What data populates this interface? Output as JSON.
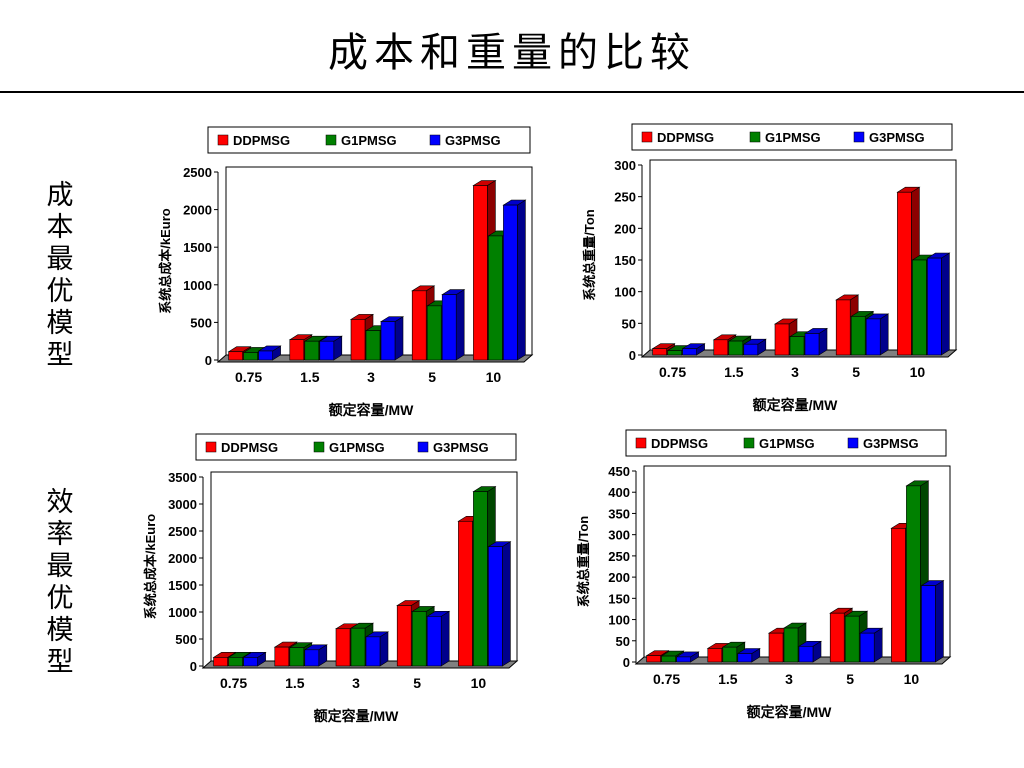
{
  "page": {
    "title": "成本和重量的比较",
    "row_labels": [
      "成本最优模型",
      "效率最优模型"
    ]
  },
  "series_colors": {
    "DDPMSG": "#ff0000",
    "G1PMSG": "#008000",
    "G3PMSG": "#0000ff"
  },
  "chart_data": [
    {
      "type": "bar",
      "title": "",
      "categories": [
        "0.75",
        "1.5",
        "3",
        "5",
        "10"
      ],
      "xlabel": "额定容量/MW",
      "ylabel": "系统总成本/kEuro",
      "ylim": [
        0,
        2500
      ],
      "yticks": [
        0,
        500,
        1000,
        1500,
        2000,
        2500
      ],
      "legend": "top",
      "grid": false,
      "series": [
        {
          "name": "DDPMSG",
          "values": [
            110,
            270,
            540,
            920,
            2320
          ]
        },
        {
          "name": "G1PMSG",
          "values": [
            100,
            250,
            390,
            720,
            1650
          ]
        },
        {
          "name": "G3PMSG",
          "values": [
            120,
            250,
            510,
            870,
            2060
          ]
        }
      ]
    },
    {
      "type": "bar",
      "title": "",
      "categories": [
        "0.75",
        "1.5",
        "3",
        "5",
        "10"
      ],
      "xlabel": "额定容量/MW",
      "ylabel": "系统总重量/Ton",
      "ylim": [
        0,
        300
      ],
      "yticks": [
        0,
        50,
        100,
        150,
        200,
        250,
        300
      ],
      "legend": "top",
      "grid": false,
      "series": [
        {
          "name": "DDPMSG",
          "values": [
            10,
            24,
            49,
            87,
            257
          ]
        },
        {
          "name": "G1PMSG",
          "values": [
            7,
            22,
            29,
            61,
            150
          ]
        },
        {
          "name": "G3PMSG",
          "values": [
            10,
            17,
            34,
            57,
            153
          ]
        }
      ]
    },
    {
      "type": "bar",
      "title": "",
      "categories": [
        "0.75",
        "1.5",
        "3",
        "5",
        "10"
      ],
      "xlabel": "额定容量/MW",
      "ylabel": "系统总成本/kEuro",
      "ylim": [
        0,
        3500
      ],
      "yticks": [
        0,
        500,
        1000,
        1500,
        2000,
        2500,
        3000,
        3500
      ],
      "legend": "top",
      "grid": false,
      "series": [
        {
          "name": "DDPMSG",
          "values": [
            160,
            350,
            690,
            1120,
            2680
          ]
        },
        {
          "name": "G1PMSG",
          "values": [
            160,
            340,
            700,
            1010,
            3230
          ]
        },
        {
          "name": "G3PMSG",
          "values": [
            160,
            300,
            540,
            920,
            2210
          ]
        }
      ]
    },
    {
      "type": "bar",
      "title": "",
      "categories": [
        "0.75",
        "1.5",
        "3",
        "5",
        "10"
      ],
      "xlabel": "额定容量/MW",
      "ylabel": "系统总重量/Ton",
      "ylim": [
        0,
        450
      ],
      "yticks": [
        0,
        50,
        100,
        150,
        200,
        250,
        300,
        350,
        400,
        450
      ],
      "legend": "top",
      "grid": false,
      "series": [
        {
          "name": "DDPMSG",
          "values": [
            15,
            32,
            68,
            115,
            315
          ]
        },
        {
          "name": "G1PMSG",
          "values": [
            14,
            35,
            80,
            108,
            415
          ]
        },
        {
          "name": "G3PMSG",
          "values": [
            12,
            20,
            37,
            68,
            180
          ]
        }
      ]
    }
  ]
}
